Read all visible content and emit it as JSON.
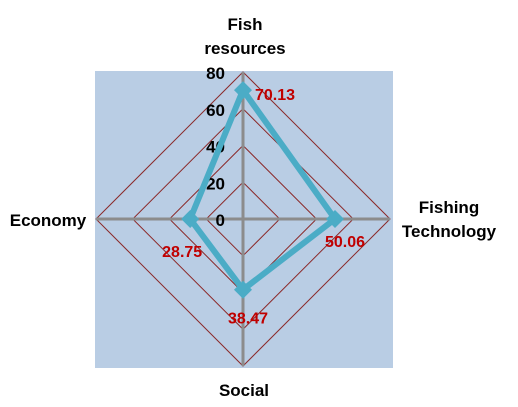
{
  "chart_data": {
    "type": "radar",
    "axes": [
      {
        "key": "fish_resources",
        "lines": [
          "Fish",
          "resources"
        ]
      },
      {
        "key": "fishing_technology",
        "lines": [
          "Fishing",
          "Technology"
        ]
      },
      {
        "key": "social",
        "lines": [
          "Social"
        ]
      },
      {
        "key": "economy",
        "lines": [
          "Economy"
        ]
      }
    ],
    "values": [
      70.13,
      50.06,
      38.47,
      28.75
    ],
    "data_labels": [
      "70.13",
      "50.06",
      "38.47",
      "28.75"
    ],
    "rlim": [
      0,
      80
    ],
    "ticks": [
      0,
      20,
      40,
      60,
      80
    ],
    "grid": true,
    "legend": "none",
    "colors": {
      "plot_background": "#b9cde4",
      "grid_line": "#8b2a2a",
      "axis_line": "#8c8c8c",
      "series_line": "#4bacc6",
      "data_label": "#c00000"
    }
  }
}
